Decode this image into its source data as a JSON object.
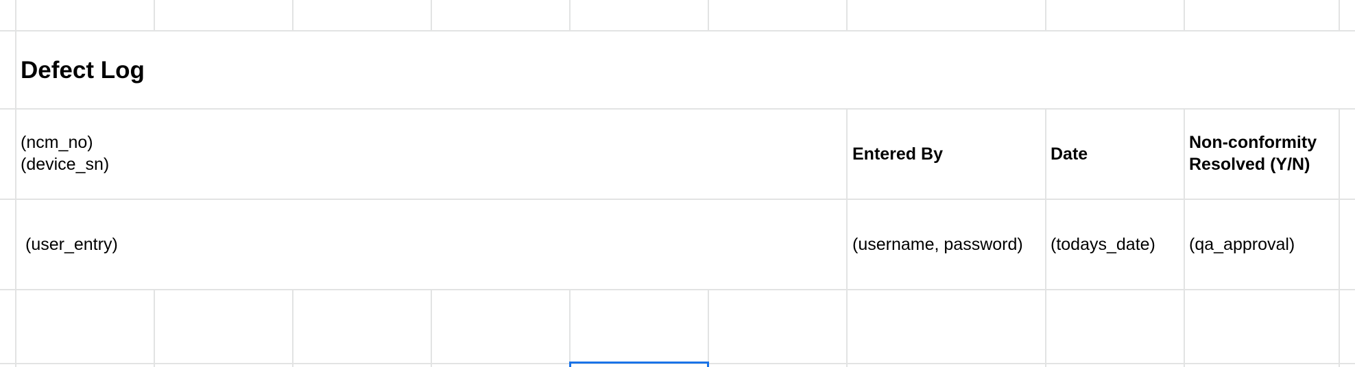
{
  "sheet": {
    "title": "Defect Log",
    "header_row": {
      "id_fields": "(ncm_no)\n(device_sn)",
      "entered_by": "Entered By",
      "date": "Date",
      "resolved": "Non-conformity\nResolved (Y/N)"
    },
    "data_row": {
      "entry": "(user_entry)",
      "entered_by": "(username, password)",
      "date": "(todays_date)",
      "resolved": "(qa_approval)"
    }
  },
  "colors": {
    "gridline": "#e2e3e3",
    "selection": "#1a73e8"
  }
}
